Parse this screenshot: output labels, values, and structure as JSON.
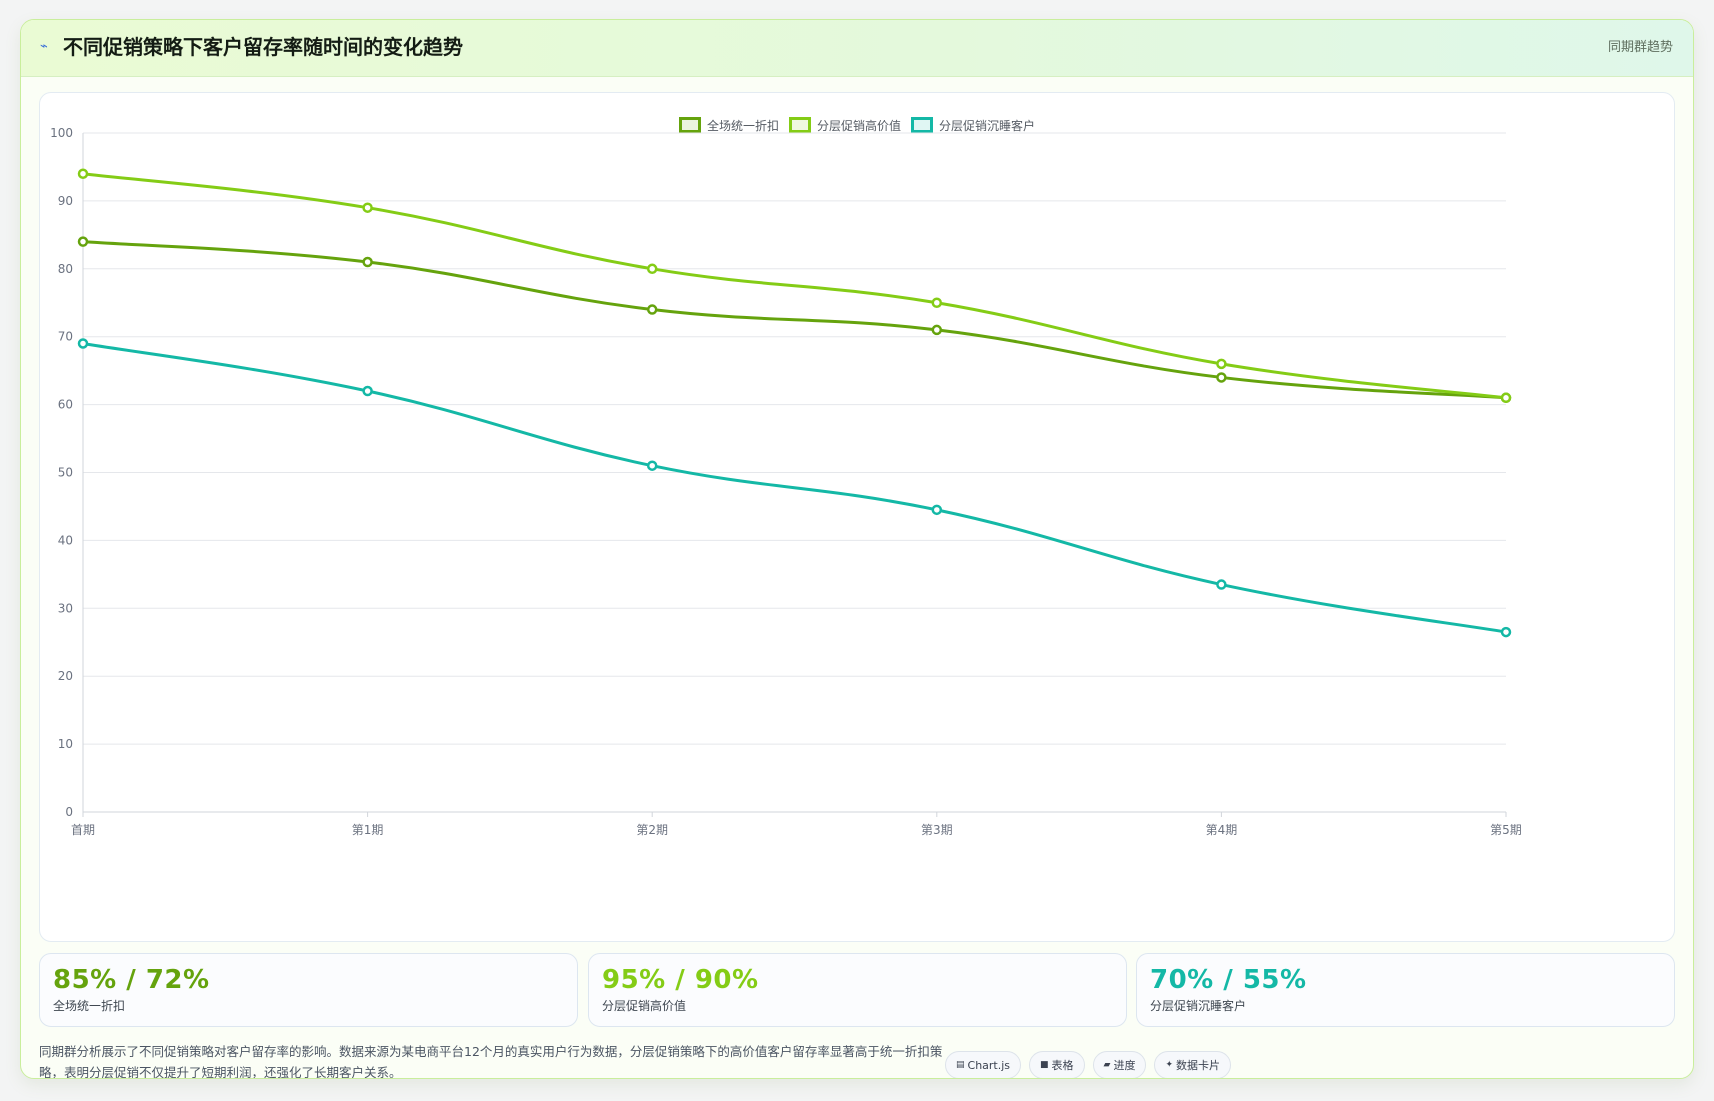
{
  "header": {
    "icon": "lightning-icon",
    "icon_glyph": "⌁",
    "title": "不同促销策略下客户留存率随时间的变化趋势",
    "tag": "同期群趋势"
  },
  "chart_data": {
    "type": "line",
    "categories": [
      "首期",
      "第1期",
      "第2期",
      "第3期",
      "第4期",
      "第5期"
    ],
    "series": [
      {
        "name": "全场统一折扣",
        "color": "#65a30d",
        "values": [
          84,
          81,
          74,
          71,
          64,
          61
        ]
      },
      {
        "name": "分层促销高价值",
        "color": "#84cc16",
        "values": [
          94,
          89,
          80,
          75,
          66,
          61
        ]
      },
      {
        "name": "分层促销沉睡客户",
        "color": "#14b8a6",
        "values": [
          69,
          62,
          51,
          44.5,
          33.5,
          26.5
        ]
      }
    ],
    "ylim": [
      0,
      100
    ],
    "yticks": [
      0,
      10,
      20,
      30,
      40,
      50,
      60,
      70,
      80,
      90,
      100
    ],
    "grid": true,
    "legend_position": "top-center"
  },
  "kpis": [
    {
      "value": "85% / 72%",
      "label": "全场统一折扣",
      "color": "#65a30d"
    },
    {
      "value": "95% / 90%",
      "label": "分层促销高价值",
      "color": "#84cc16"
    },
    {
      "value": "70% / 55%",
      "label": "分层促销沉睡客户",
      "color": "#14b8a6"
    }
  ],
  "footer": {
    "note": "同期群分析展示了不同促销策略对客户留存率的影响。数据来源为某电商平台12个月的真实用户行为数据，分层促销策略下的高价值客户留存率显著高于统一折扣策略，表明分层促销不仅提升了短期利润，还强化了长期客户关系。"
  },
  "pills": [
    {
      "icon": "chart-icon",
      "glyph": "▤",
      "label": "Chart.js"
    },
    {
      "icon": "table-icon",
      "glyph": "■",
      "label": "表格"
    },
    {
      "icon": "progress-icon",
      "glyph": "▰",
      "label": "进度"
    },
    {
      "icon": "sparkle-icon",
      "glyph": "✦",
      "label": "数据卡片"
    }
  ]
}
